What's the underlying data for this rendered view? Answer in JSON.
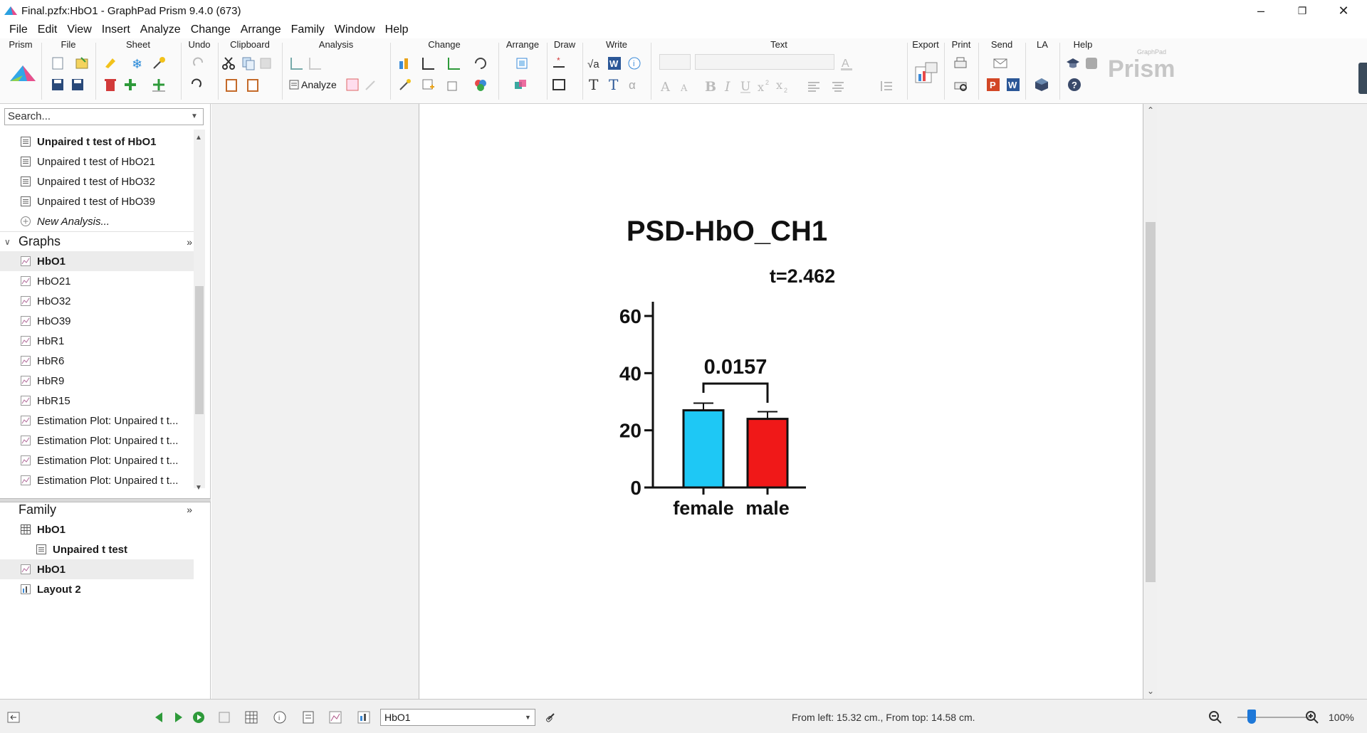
{
  "window": {
    "title": "Final.pzfx:HbO1 - GraphPad Prism 9.4.0 (673)",
    "controls": {
      "minimize": "–",
      "restore": "❐",
      "close": "✕"
    }
  },
  "menubar": [
    "File",
    "Edit",
    "View",
    "Insert",
    "Analyze",
    "Change",
    "Arrange",
    "Family",
    "Window",
    "Help"
  ],
  "ribbon": {
    "groups": [
      "Prism",
      "File",
      "Sheet",
      "Undo",
      "Clipboard",
      "Analysis",
      "Change",
      "Arrange",
      "Draw",
      "Write",
      "Text",
      "Export",
      "Print",
      "Send",
      "LA",
      "Help"
    ],
    "analyze_label": "Analyze",
    "brand": "Prism",
    "brand_small": "GraphPad"
  },
  "navigator": {
    "search_placeholder": "Search...",
    "analyses": [
      {
        "label": "Unpaired t test of HbO1",
        "bold": true
      },
      {
        "label": "Unpaired t test of HbO21"
      },
      {
        "label": "Unpaired t test of HbO32"
      },
      {
        "label": "Unpaired t test of HbO39"
      }
    ],
    "new_analysis": "New Analysis...",
    "graphs_header": "Graphs",
    "graphs": [
      {
        "label": "HbO1",
        "bold": true,
        "selected": true
      },
      {
        "label": "HbO21"
      },
      {
        "label": "HbO32"
      },
      {
        "label": "HbO39"
      },
      {
        "label": "HbR1"
      },
      {
        "label": "HbR6"
      },
      {
        "label": "HbR9"
      },
      {
        "label": "HbR15"
      },
      {
        "label": "Estimation Plot: Unpaired t t..."
      },
      {
        "label": "Estimation Plot: Unpaired t t..."
      },
      {
        "label": "Estimation Plot: Unpaired t t..."
      },
      {
        "label": "Estimation Plot: Unpaired t t..."
      }
    ],
    "more_glyph": "»",
    "family_header": "Family",
    "family": [
      {
        "label": "HbO1",
        "type": "table",
        "indent": 0
      },
      {
        "label": "Unpaired t test",
        "type": "analysis",
        "indent": 1
      },
      {
        "label": "HbO1",
        "type": "graph",
        "indent": 0,
        "selected": true
      },
      {
        "label": "Layout 2",
        "type": "layout",
        "indent": 0
      }
    ]
  },
  "chart_data": {
    "type": "bar",
    "title": "PSD-HbO_CH1",
    "annotation": "t=2.462",
    "pvalue_label": "0.0157",
    "categories": [
      "female",
      "male"
    ],
    "values": [
      27,
      24
    ],
    "errors": [
      2.5,
      2.5
    ],
    "colors": [
      "#1ec8f5",
      "#f01818"
    ],
    "ylim": [
      0,
      60
    ],
    "yticks": [
      "0",
      "20",
      "40",
      "60"
    ],
    "xlabel": "",
    "ylabel": ""
  },
  "statusbar": {
    "sheet": "HbO1",
    "position_text": "From left: 15.32 cm., From top: 14.58 cm.",
    "zoom": "100%"
  }
}
